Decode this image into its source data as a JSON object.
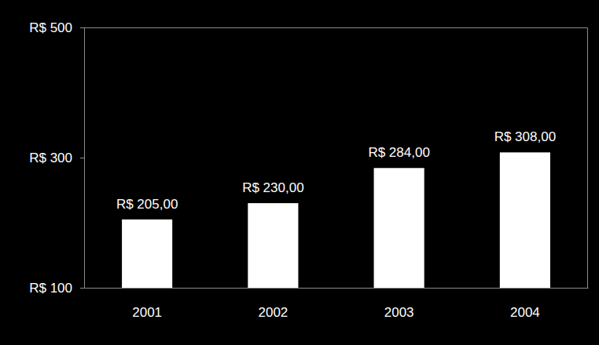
{
  "chart_data": {
    "type": "bar",
    "categories": [
      "2001",
      "2002",
      "2003",
      "2004"
    ],
    "values": [
      205,
      230,
      284,
      308
    ],
    "value_labels": [
      "R$ 205,00",
      "R$ 230,00",
      "R$ 284,00",
      "R$ 308,00"
    ],
    "color": "#ffffff",
    "ylim": [
      100,
      500
    ],
    "yticks": [
      {
        "value": 100,
        "label": "R$ 100"
      },
      {
        "value": 300,
        "label": "R$ 300"
      },
      {
        "value": 500,
        "label": "R$ 500"
      }
    ],
    "grid": false,
    "data_labels": true
  }
}
